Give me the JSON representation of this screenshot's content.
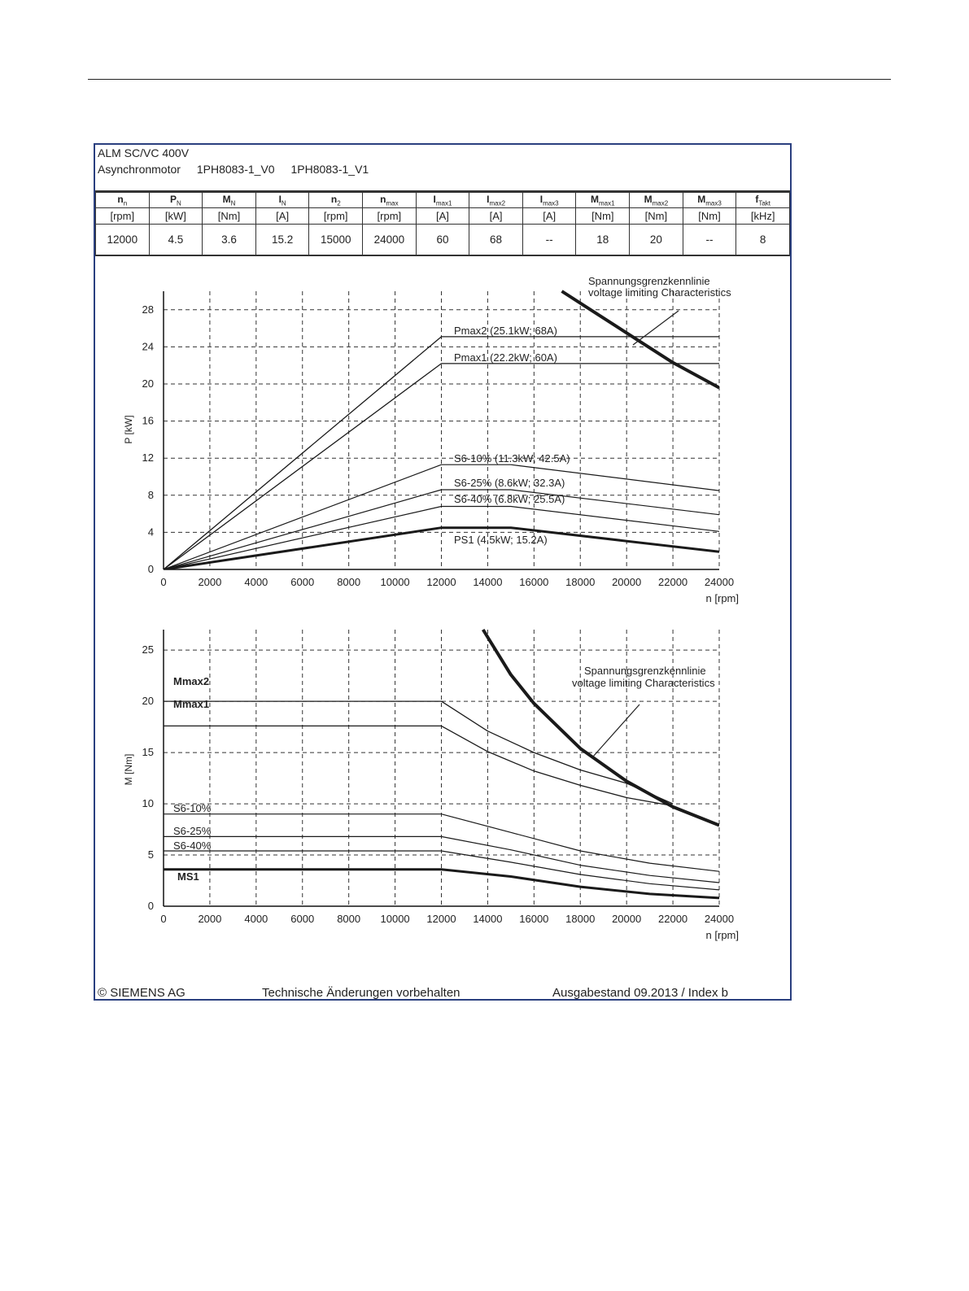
{
  "header": {
    "line1": "ALM SC/VC 400V",
    "line2_prefix": "Asynchronmotor",
    "model_v0": "1PH8083-1_V0",
    "model_v1": "1PH8083-1_V1"
  },
  "spec_table": {
    "columns": [
      {
        "sym": "n",
        "sub": "n",
        "unit": "[rpm]",
        "value": "12000"
      },
      {
        "sym": "P",
        "sub": "N",
        "unit": "[kW]",
        "value": "4.5"
      },
      {
        "sym": "M",
        "sub": "N",
        "unit": "[Nm]",
        "value": "3.6"
      },
      {
        "sym": "I",
        "sub": "N",
        "unit": "[A]",
        "value": "15.2"
      },
      {
        "sym": "n",
        "sub": "2",
        "unit": "[rpm]",
        "value": "15000"
      },
      {
        "sym": "n",
        "sub": "max",
        "unit": "[rpm]",
        "value": "24000"
      },
      {
        "sym": "I",
        "sub": "max1",
        "unit": "[A]",
        "value": "60"
      },
      {
        "sym": "I",
        "sub": "max2",
        "unit": "[A]",
        "value": "68"
      },
      {
        "sym": "I",
        "sub": "max3",
        "unit": "[A]",
        "value": "--"
      },
      {
        "sym": "M",
        "sub": "max1",
        "unit": "[Nm]",
        "value": "18"
      },
      {
        "sym": "M",
        "sub": "max2",
        "unit": "[Nm]",
        "value": "20"
      },
      {
        "sym": "M",
        "sub": "max3",
        "unit": "[Nm]",
        "value": "--"
      },
      {
        "sym": "f",
        "sub": "Takt",
        "unit": "[kHz]",
        "value": "8"
      }
    ]
  },
  "footer": {
    "copyright": "© SIEMENS AG",
    "notice": "Technische Änderungen vorbehalten",
    "edition": "Ausgabestand 09.2013 / Index b"
  },
  "colors": {
    "frame": "#2a3f7f",
    "line": "#1a1a1a"
  },
  "chart_data": [
    {
      "type": "line",
      "ylabel": "P [kW]",
      "xlabel": "n [rpm]",
      "xlim": [
        0,
        24000
      ],
      "ylim": [
        0,
        30
      ],
      "xticks": [
        0,
        2000,
        4000,
        6000,
        8000,
        10000,
        12000,
        14000,
        16000,
        18000,
        20000,
        22000,
        24000
      ],
      "yticks": [
        0,
        4,
        8,
        12,
        16,
        20,
        24,
        28
      ],
      "grid": "dashed",
      "annotation": {
        "line1": "Spannungsgrenzkennlinie",
        "line2": "voltage limiting  Characteristics"
      },
      "series": [
        {
          "name": "Pmax2 (25.1kW; 68A)",
          "x": [
            0,
            12000,
            24000
          ],
          "y": [
            0,
            25.1,
            25.1
          ],
          "width": 1.3
        },
        {
          "name": "Pmax1 (22.2kW; 60A)",
          "x": [
            0,
            12000,
            24000
          ],
          "y": [
            0,
            22.2,
            22.2
          ],
          "width": 1.3
        },
        {
          "name": "S6-10% (11.3kW; 42.5A)",
          "x": [
            0,
            12000,
            15000,
            24000
          ],
          "y": [
            0,
            11.3,
            11.3,
            8.5
          ],
          "width": 1.2
        },
        {
          "name": "S6-25% (8.6kW; 32.3A)",
          "x": [
            0,
            12000,
            15000,
            24000
          ],
          "y": [
            0,
            8.6,
            8.6,
            5.9
          ],
          "width": 1.2
        },
        {
          "name": "S6-40% (6.8kW; 25.5A)",
          "x": [
            0,
            12000,
            15000,
            24000
          ],
          "y": [
            0,
            6.8,
            6.8,
            4.1
          ],
          "width": 1.2
        },
        {
          "name": "PS1 (4.5kW; 15.2A)",
          "x": [
            0,
            12000,
            15000,
            24000
          ],
          "y": [
            0,
            4.5,
            4.5,
            1.9
          ],
          "width": 3
        },
        {
          "name": "",
          "x": [
            17200,
            20000,
            22000,
            24000
          ],
          "y": [
            30,
            25.5,
            22.3,
            19.6
          ],
          "width": 4
        }
      ]
    },
    {
      "type": "line",
      "ylabel": "M [Nm]",
      "xlabel": "n [rpm]",
      "xlim": [
        0,
        24000
      ],
      "ylim": [
        0,
        27
      ],
      "xticks": [
        0,
        2000,
        4000,
        6000,
        8000,
        10000,
        12000,
        14000,
        16000,
        18000,
        20000,
        22000,
        24000
      ],
      "yticks": [
        0,
        5,
        10,
        15,
        20,
        25
      ],
      "grid": "dashed",
      "annotation": {
        "line1": "Spannungsgrenzkennlinie",
        "line2": "voltage limiting  Characteristics"
      },
      "series": [
        {
          "name": "Mmax2",
          "x": [
            0,
            12000,
            14000,
            16000,
            18000,
            20000,
            22000
          ],
          "y": [
            20,
            20,
            17.1,
            15.0,
            13.3,
            12.0,
            10.0
          ],
          "width": 1.3
        },
        {
          "name": "Mmax1",
          "x": [
            0,
            12000,
            14000,
            16000,
            18000,
            20000,
            22000
          ],
          "y": [
            17.6,
            17.6,
            15.1,
            13.2,
            11.8,
            10.6,
            9.8
          ],
          "width": 1.3
        },
        {
          "name": "S6-10%",
          "x": [
            0,
            12000,
            15000,
            18000,
            21000,
            24000
          ],
          "y": [
            9.0,
            9.0,
            7.2,
            5.4,
            4.2,
            3.4
          ],
          "width": 1.2
        },
        {
          "name": "S6-25%",
          "x": [
            0,
            12000,
            15000,
            18000,
            21000,
            24000
          ],
          "y": [
            6.8,
            6.8,
            5.5,
            4.0,
            3.0,
            2.3
          ],
          "width": 1.2
        },
        {
          "name": "S6-40%",
          "x": [
            0,
            12000,
            15000,
            18000,
            21000,
            24000
          ],
          "y": [
            5.4,
            5.4,
            4.3,
            3.1,
            2.2,
            1.6
          ],
          "width": 1.2
        },
        {
          "name": "MS1",
          "x": [
            0,
            12000,
            15000,
            18000,
            21000,
            24000
          ],
          "y": [
            3.6,
            3.6,
            2.9,
            1.9,
            1.2,
            0.8
          ],
          "width": 3
        },
        {
          "name": "",
          "x": [
            13800,
            15000,
            16000,
            18000,
            20000,
            22000,
            24000
          ],
          "y": [
            27,
            22.6,
            19.8,
            15.4,
            12.2,
            9.7,
            7.9
          ],
          "width": 4
        }
      ]
    }
  ]
}
